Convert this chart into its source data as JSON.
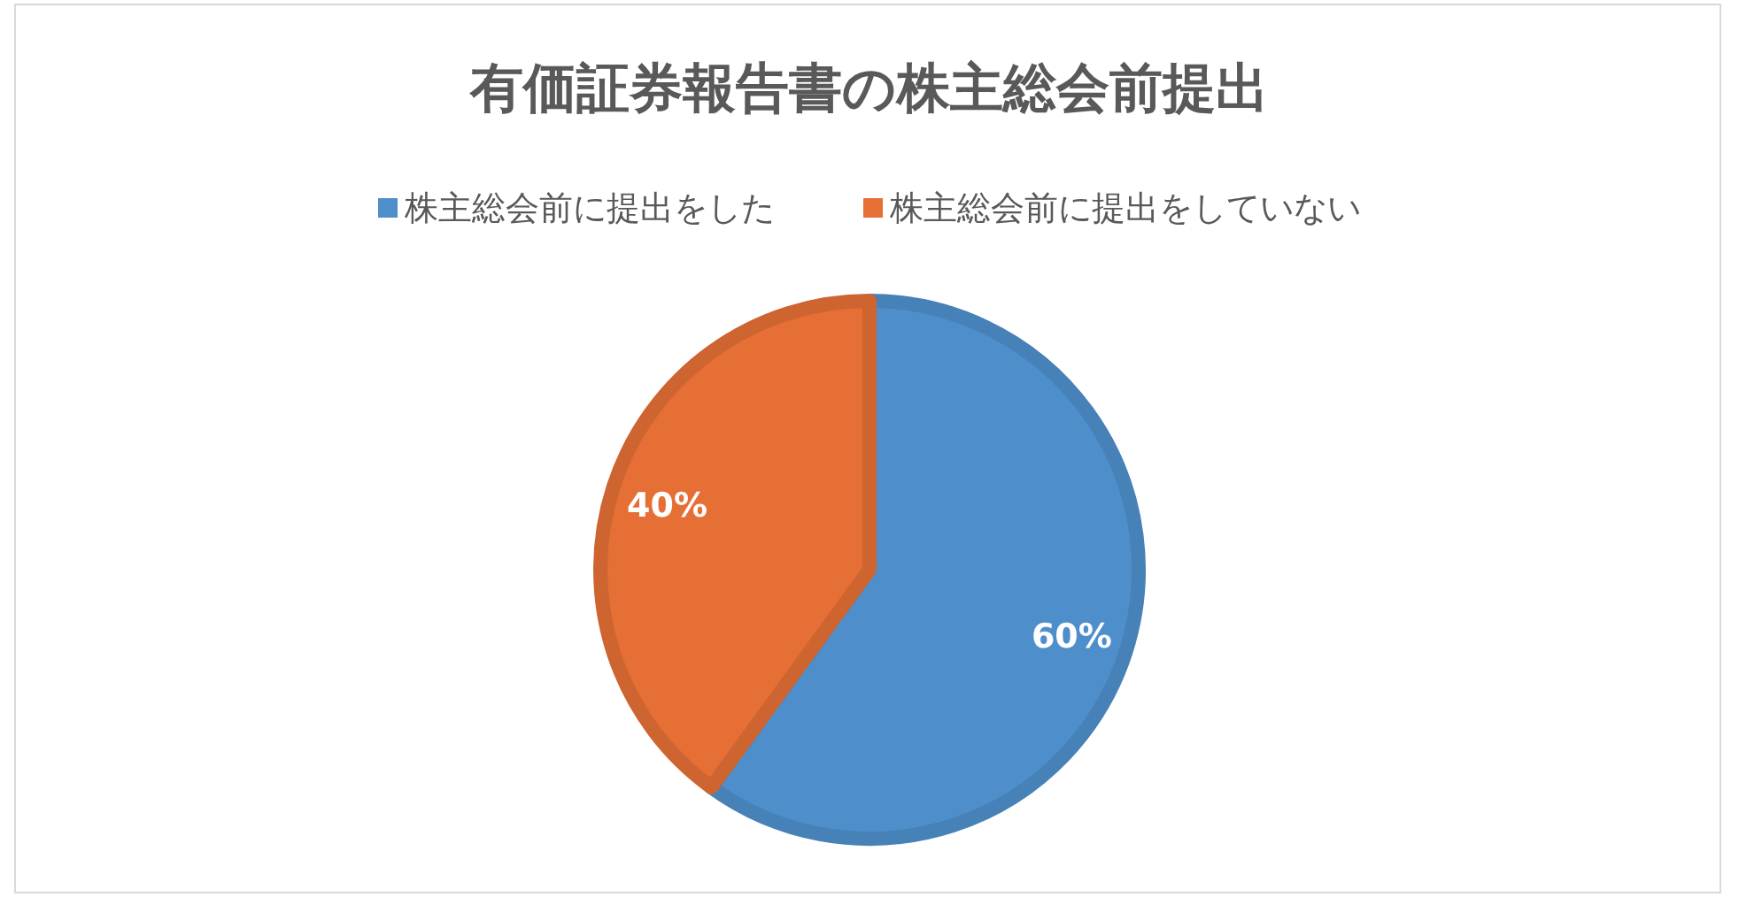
{
  "chart_data": {
    "type": "pie",
    "title": "有価証券報告書の株主総会前提出",
    "categories": [
      "株主総会前に提出をした",
      "株主総会前に提出をしていない"
    ],
    "values": [
      60,
      40
    ],
    "colors": [
      "#4e8fcb",
      "#e56f35"
    ],
    "value_labels": [
      "60%",
      "40%"
    ],
    "legend": "top"
  }
}
